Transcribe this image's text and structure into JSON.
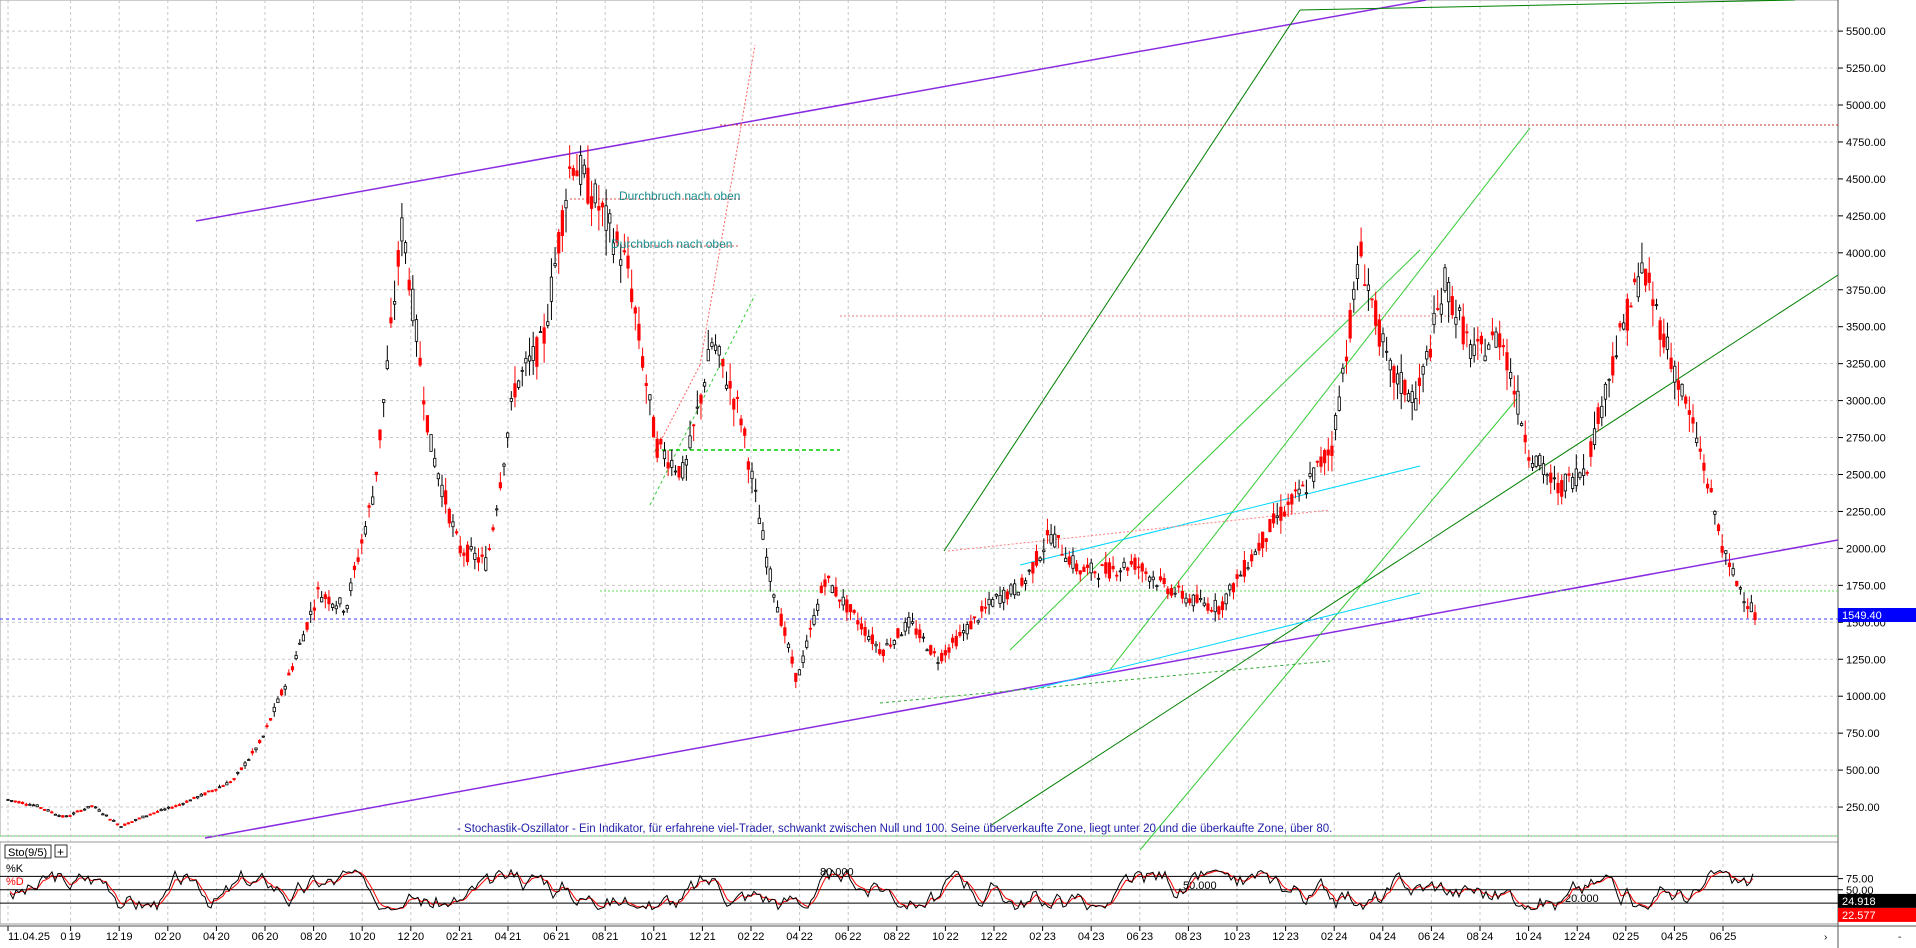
{
  "chart_data": {
    "type": "candlestick",
    "title": "",
    "price_axis": {
      "ticks": [
        "5500.00",
        "5250.00",
        "5000.00",
        "4750.00",
        "4500.00",
        "4250.00",
        "4000.00",
        "3750.00",
        "3500.00",
        "3250.00",
        "3000.00",
        "2750.00",
        "2500.00",
        "2250.00",
        "2000.00",
        "1750.00",
        "1500.00",
        "1250.00",
        "1000.00",
        "750.00",
        "500.00",
        "250.00"
      ],
      "ylim": [
        0,
        5750
      ]
    },
    "date_axis": {
      "ticks": [
        "11.04.25",
        "0 19",
        "12 19",
        "02 20",
        "04 20",
        "06 20",
        "08 20",
        "10 20",
        "12 20",
        "02 21",
        "04 21",
        "06 21",
        "08 21",
        "10 21",
        "12 21",
        "02 22",
        "04 22",
        "06 22",
        "08 22",
        "10 22",
        "12 22",
        "02 23",
        "04 23",
        "06 23",
        "08 23",
        "10 23",
        "12 23",
        "02 24",
        "04 24",
        "06 24",
        "08 24",
        "10 24",
        "12 24",
        "02 25",
        "04 25",
        "06 25"
      ]
    },
    "price_series": {
      "name": "",
      "approx_closes": [
        [
          "2019-08",
          300
        ],
        [
          "2019-10",
          260
        ],
        [
          "2019-12",
          180
        ],
        [
          "2020-02",
          260
        ],
        [
          "2020-03",
          120
        ],
        [
          "2020-05",
          200
        ],
        [
          "2020-07",
          260
        ],
        [
          "2020-09",
          340
        ],
        [
          "2020-11",
          430
        ],
        [
          "2020-12",
          700
        ],
        [
          "2021-01",
          1150
        ],
        [
          "2021-02",
          1700
        ],
        [
          "2021-03",
          1600
        ],
        [
          "2021-04",
          2400
        ],
        [
          "2021-05",
          4200
        ],
        [
          "2021-06",
          2700
        ],
        [
          "2021-07",
          2000
        ],
        [
          "2021-08",
          1900
        ],
        [
          "2021-09",
          3100
        ],
        [
          "2021-10",
          3400
        ],
        [
          "2021-11",
          4650
        ],
        [
          "2021-12",
          4300
        ],
        [
          "2022-01",
          3900
        ],
        [
          "2022-02",
          2700
        ],
        [
          "2022-03",
          2500
        ],
        [
          "2022-04",
          3400
        ],
        [
          "2022-05",
          2900
        ],
        [
          "2022-06",
          1850
        ],
        [
          "2022-07",
          1100
        ],
        [
          "2022-08",
          1800
        ],
        [
          "2022-09",
          1550
        ],
        [
          "2022-10",
          1300
        ],
        [
          "2022-11",
          1500
        ],
        [
          "2022-12",
          1250
        ],
        [
          "2023-01",
          1450
        ],
        [
          "2023-02",
          1650
        ],
        [
          "2023-03",
          1750
        ],
        [
          "2023-04",
          2100
        ],
        [
          "2023-05",
          1850
        ],
        [
          "2023-06",
          1850
        ],
        [
          "2023-07",
          1900
        ],
        [
          "2023-08",
          1750
        ],
        [
          "2023-09",
          1650
        ],
        [
          "2023-10",
          1600
        ],
        [
          "2023-11",
          1900
        ],
        [
          "2023-12",
          2200
        ],
        [
          "2024-01",
          2400
        ],
        [
          "2024-02",
          2700
        ],
        [
          "2024-03",
          4000
        ],
        [
          "2024-04",
          3200
        ],
        [
          "2024-05",
          3000
        ],
        [
          "2024-06",
          3800
        ],
        [
          "2024-07",
          3300
        ],
        [
          "2024-08",
          3450
        ],
        [
          "2024-09",
          2650
        ],
        [
          "2024-10",
          2400
        ],
        [
          "2024-11",
          2550
        ],
        [
          "2024-12",
          3300
        ],
        [
          "2025-01",
          3900
        ],
        [
          "2025-02",
          3300
        ],
        [
          "2025-03",
          2700
        ],
        [
          "2025-04",
          1900
        ],
        [
          "2025-04b",
          1549.4
        ]
      ]
    },
    "last_price_label": "1549.40",
    "annotations": [
      "Durchbruch nach oben",
      "Durchbruch nach oben",
      "- Stochastik-Oszillator - Ein Indikator, für erfahrene viel-Trader, schwankt zwischen Null und 100. Seine überverkaufte Zone, liegt unter 20 und die überkaufte Zone, über 80."
    ],
    "grid": true,
    "indicator": {
      "name": "Sto(9/5)",
      "series": [
        "%K",
        "%D"
      ],
      "axis_ticks": [
        "75.00",
        "50.00",
        "25.00"
      ],
      "levels": [
        "80.000",
        "50.000",
        "20.000"
      ],
      "k_label": "24.918",
      "d_label": "22.577"
    }
  },
  "colors": {
    "up_candle": "#ffffff",
    "down_candle": "#ff0000",
    "candle_line": "#000000",
    "last_price_tag": "#0000ff",
    "k_tag": "#000000",
    "d_tag": "#ff0000",
    "violet_channel": "#8a2be2",
    "dark_green_channel": "#008000",
    "light_green_lines": "#33cc33",
    "cyan_lines": "#00d5ff",
    "annotation_text": "#1b8b8b",
    "stoch_note": "#1f1fa8"
  }
}
